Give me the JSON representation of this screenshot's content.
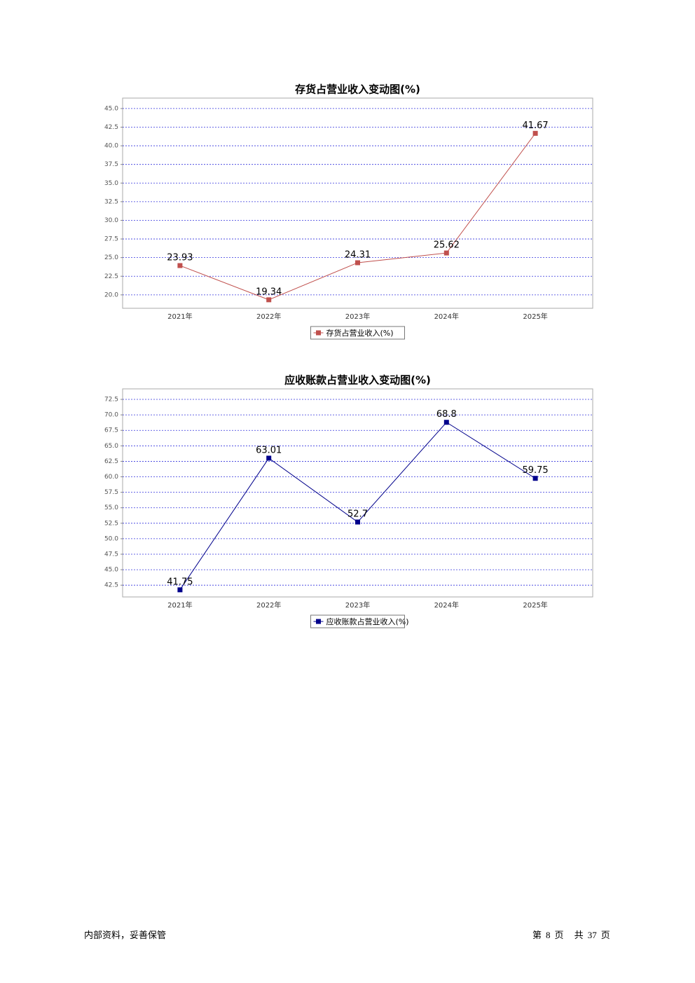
{
  "chart_data": [
    {
      "type": "line",
      "title": "存货占营业收入变动图(%)",
      "categories": [
        "2021年",
        "2022年",
        "2023年",
        "2024年",
        "2025年"
      ],
      "series": [
        {
          "name": "存货占营业收入(%)",
          "color": "#c0504d",
          "values": [
            23.93,
            19.34,
            24.31,
            25.62,
            41.67
          ]
        }
      ],
      "ylim": [
        18.2,
        46.4
      ],
      "yticks": [
        {
          "value": 20,
          "label": "20.0"
        },
        22.5,
        {
          "value": 25,
          "label": "25.0"
        },
        27.5,
        {
          "value": 30,
          "label": "30.0"
        },
        32.5,
        {
          "value": 35,
          "label": "35.0"
        },
        37.5,
        {
          "value": 40,
          "label": "40.0"
        },
        42.5,
        {
          "value": 45,
          "label": "45.0"
        }
      ],
      "grid": true,
      "legend": "bottom"
    },
    {
      "type": "line",
      "title": "应收账款占营业收入变动图(%)",
      "categories": [
        "2021年",
        "2022年",
        "2023年",
        "2024年",
        "2025年"
      ],
      "series": [
        {
          "name": "应收账款占营业收入(%)",
          "color": "#00008b",
          "values": [
            41.75,
            63.01,
            52.7,
            68.8,
            59.75
          ]
        }
      ],
      "ylim": [
        40.6,
        74.2
      ],
      "yticks": [
        42.5,
        {
          "value": 45,
          "label": "45.0"
        },
        47.5,
        {
          "value": 50,
          "label": "50.0"
        },
        52.5,
        {
          "value": 55,
          "label": "55.0"
        },
        57.5,
        {
          "value": 60,
          "label": "60.0"
        },
        62.5,
        {
          "value": 65,
          "label": "65.0"
        },
        67.5,
        {
          "value": 70,
          "label": "70.0"
        },
        72.5
      ],
      "grid": true,
      "legend": "bottom"
    }
  ],
  "footer": {
    "left": "内部资料，妥善保管",
    "page_prefix": "第",
    "page": 8,
    "page_suffix": "页",
    "total_prefix": "共",
    "total": 37,
    "total_suffix": "页"
  }
}
